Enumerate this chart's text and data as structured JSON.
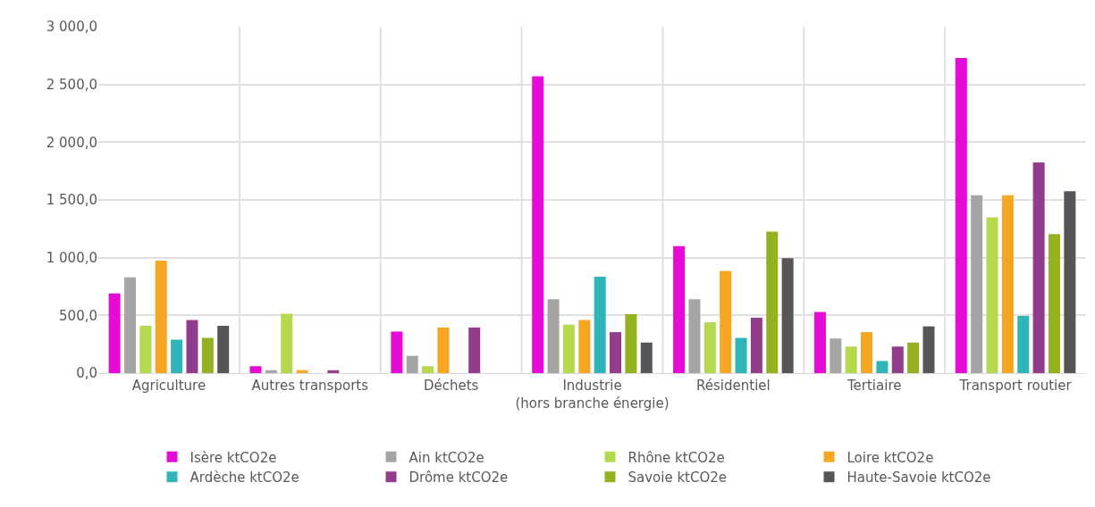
{
  "chart_data": {
    "type": "bar",
    "categories": [
      "Agriculture",
      "Autres transports",
      "Déchets",
      "Industrie (hors branche énergie)",
      "Résidentiel",
      "Tertiaire",
      "Transport routier"
    ],
    "series": [
      {
        "name": "Isère ktCO2e",
        "color": "#e60ad6",
        "values": [
          690,
          60,
          360,
          2570,
          1100,
          530,
          2730
        ]
      },
      {
        "name": "Ain ktCO2e",
        "color": "#a5a5a5",
        "values": [
          830,
          25,
          150,
          640,
          640,
          300,
          1540
        ]
      },
      {
        "name": "Rhône ktCO2e",
        "color": "#b4d94f",
        "values": [
          410,
          515,
          60,
          420,
          440,
          230,
          1350
        ]
      },
      {
        "name": "Loire ktCO2e",
        "color": "#f5a623",
        "values": [
          975,
          25,
          395,
          460,
          885,
          355,
          1540
        ]
      },
      {
        "name": "Ardèche ktCO2e",
        "color": "#2fb5b8",
        "values": [
          290,
          null,
          null,
          835,
          305,
          105,
          495
        ]
      },
      {
        "name": "Drôme ktCO2e",
        "color": "#913d8c",
        "values": [
          460,
          25,
          395,
          355,
          480,
          230,
          1825
        ]
      },
      {
        "name": "Savoie ktCO2e",
        "color": "#94b21f",
        "values": [
          305,
          null,
          null,
          510,
          1225,
          265,
          1205
        ]
      },
      {
        "name": "Haute-Savoie ktCO2e",
        "color": "#565656",
        "values": [
          410,
          null,
          null,
          265,
          995,
          405,
          1575
        ]
      }
    ],
    "ylim": [
      0,
      3000
    ],
    "yticks": [
      {
        "value": 0,
        "label": "0,0"
      },
      {
        "value": 500,
        "label": "500,0"
      },
      {
        "value": 1000,
        "label": "1 000,0"
      },
      {
        "value": 1500,
        "label": "1 500,0"
      },
      {
        "value": 2000,
        "label": "2 000,0"
      },
      {
        "value": 2500,
        "label": "2 500,0"
      },
      {
        "value": 3000,
        "label": "3 000,0"
      }
    ],
    "grid": true,
    "legend": "bottom"
  }
}
